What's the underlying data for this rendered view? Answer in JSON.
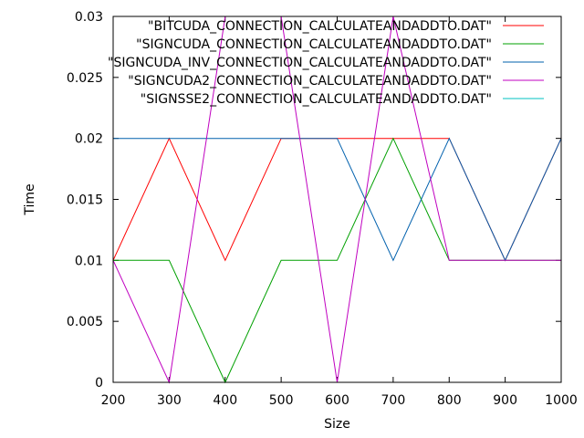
{
  "chart_data": {
    "type": "line",
    "xlabel": "Size",
    "ylabel": "Time",
    "xlim": [
      200,
      1000
    ],
    "ylim": [
      0,
      0.03
    ],
    "xticks": [
      "200",
      "300",
      "400",
      "500",
      "600",
      "700",
      "800",
      "900",
      "1000"
    ],
    "yticks": [
      "0",
      "0.005",
      "0.01",
      "0.015",
      "0.02",
      "0.025",
      "0.03"
    ],
    "grid": false,
    "legend_position": "top-right",
    "x": [
      200,
      300,
      400,
      500,
      600,
      700,
      800,
      900,
      1000
    ],
    "series": [
      {
        "name": "\"BITCUDA_CONNECTION_CALCULATEANDADDTO.DAT\"",
        "color": "#ff0000",
        "values": [
          0.01,
          0.02,
          0.01,
          0.02,
          0.02,
          0.02,
          0.02,
          0.01,
          0.02
        ]
      },
      {
        "name": "\"SIGNCUDA_CONNECTION_CALCULATEANDADDTO.DAT\"",
        "color": "#00a000",
        "values": [
          0.01,
          0.01,
          0.0,
          0.01,
          0.01,
          0.02,
          0.01,
          0.01,
          0.01
        ]
      },
      {
        "name": "\"SIGNCUDA_INV_CONNECTION_CALCULATEANDADDTO.DAT\"",
        "color": "#0060ad",
        "values": [
          0.02,
          0.02,
          0.02,
          0.02,
          0.02,
          0.01,
          0.02,
          0.01,
          0.02
        ]
      },
      {
        "name": "\"SIGNCUDA2_CONNECTION_CALCULATEANDADDTO.DAT\"",
        "color": "#c000c0",
        "values": [
          0.01,
          0.0,
          0.03,
          0.03,
          0.0,
          0.03,
          0.01,
          0.01,
          0.01
        ]
      },
      {
        "name": "\"SIGNSSE2_CONNECTION_CALCULATEANDADDTO.DAT\"",
        "color": "#00c0c0",
        "values": [
          null,
          null,
          null,
          null,
          null,
          null,
          null,
          null,
          null
        ]
      }
    ]
  }
}
